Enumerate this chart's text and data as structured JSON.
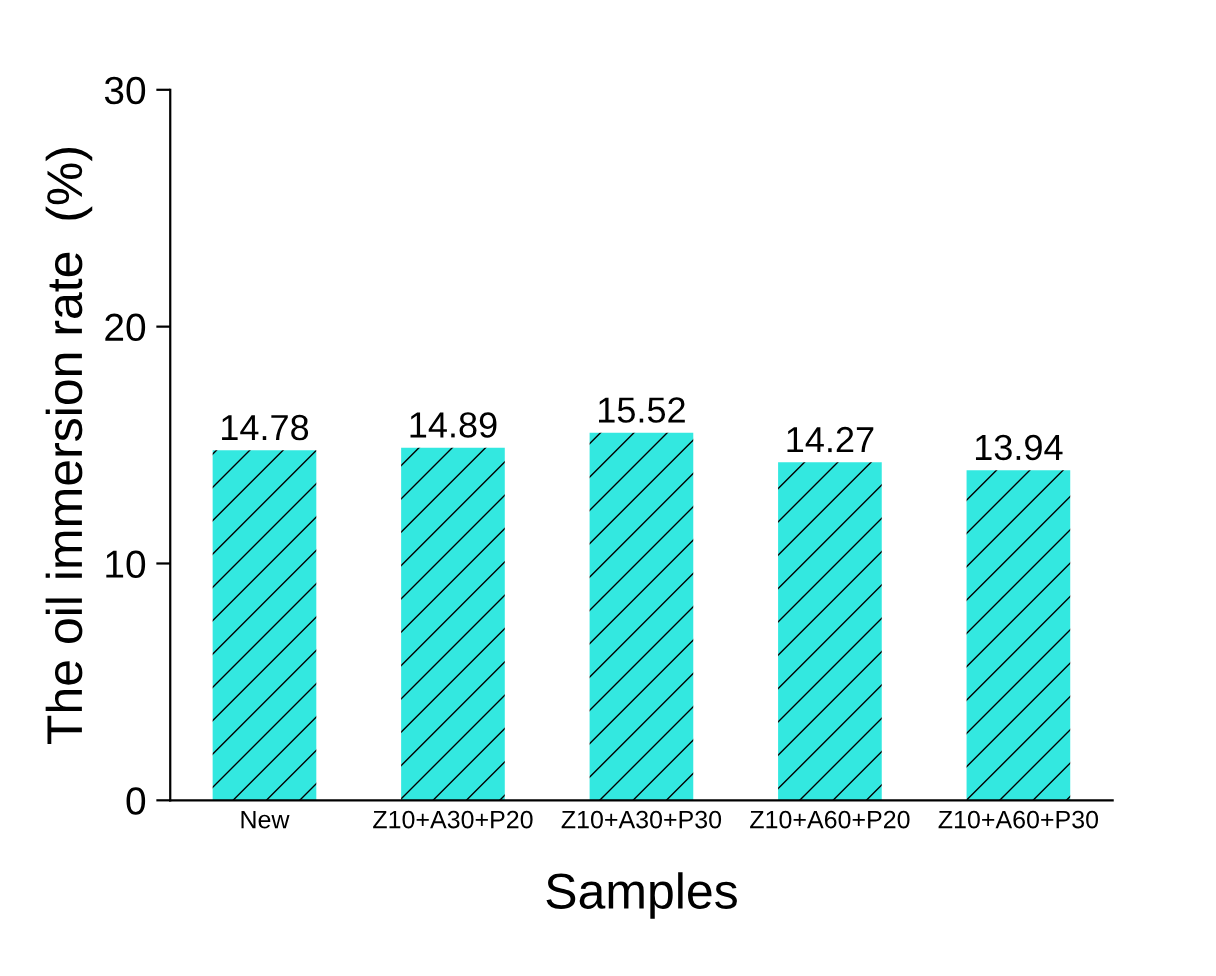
{
  "chart_data": {
    "type": "bar",
    "xlabel": "Samples",
    "ylabel": "The oil immersion rate  (%)",
    "categories": [
      "New",
      "Z10+A30+P20",
      "Z10+A30+P30",
      "Z10+A60+P20",
      "Z10+A60+P30"
    ],
    "values": [
      14.78,
      14.89,
      15.52,
      14.27,
      13.94
    ],
    "color": "#33e8e0",
    "ylim": [
      0,
      30
    ],
    "yticks": [
      0,
      10,
      20,
      30
    ],
    "data_labels": true,
    "grid": false,
    "legend": false
  }
}
